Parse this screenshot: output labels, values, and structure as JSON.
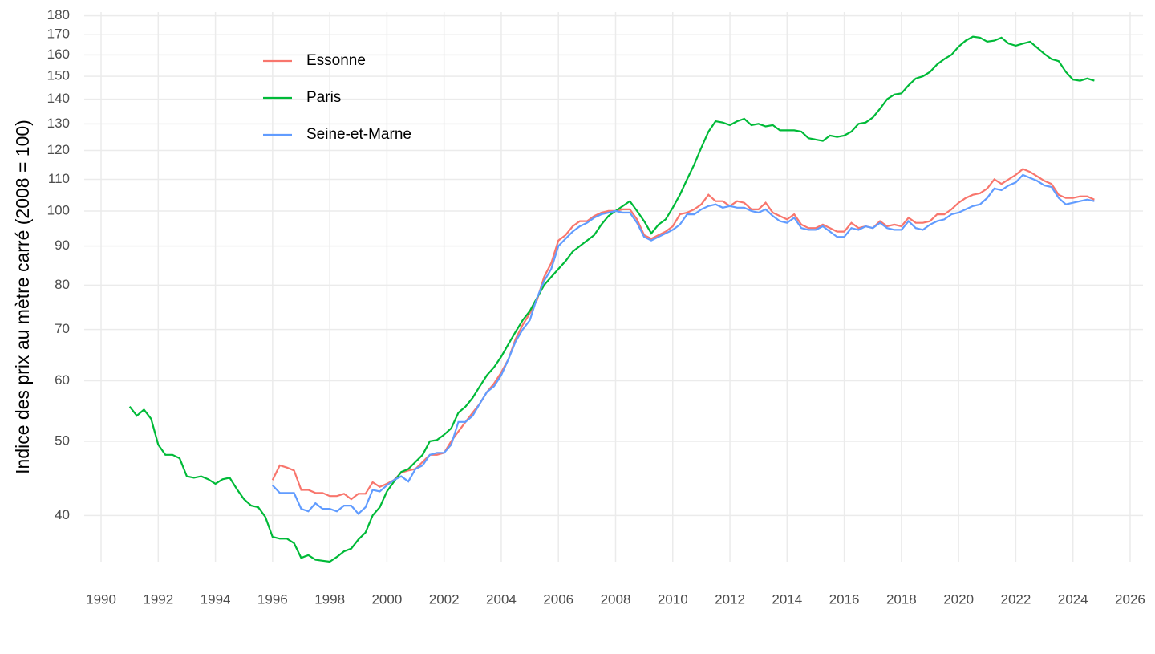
{
  "chart_data": {
    "type": "line",
    "y_label": "Indice des prix au mètre carré (2008 = 100)",
    "log_y": true,
    "grid": true,
    "legend_position": "top-left",
    "xlim": [
      1989.41,
      2026.45
    ],
    "ylim": [
      34.8,
      182
    ],
    "xticks": [
      1990,
      1992,
      1994,
      1996,
      1998,
      2000,
      2002,
      2004,
      2006,
      2008,
      2010,
      2012,
      2014,
      2016,
      2018,
      2020,
      2022,
      2024,
      2026
    ],
    "yticks": [
      40,
      50,
      60,
      70,
      80,
      90,
      100,
      110,
      120,
      130,
      140,
      150,
      160,
      170,
      180
    ],
    "x": [
      1991,
      1991.25,
      1991.5,
      1991.75,
      1992,
      1992.25,
      1992.5,
      1992.75,
      1993,
      1993.25,
      1993.5,
      1993.75,
      1994,
      1994.25,
      1994.5,
      1994.75,
      1995,
      1995.25,
      1995.5,
      1995.75,
      1996,
      1996.25,
      1996.5,
      1996.75,
      1997,
      1997.25,
      1997.5,
      1997.75,
      1998,
      1998.25,
      1998.5,
      1998.75,
      1999,
      1999.25,
      1999.5,
      1999.75,
      2000,
      2000.25,
      2000.5,
      2000.75,
      2001,
      2001.25,
      2001.5,
      2001.75,
      2002,
      2002.25,
      2002.5,
      2002.75,
      2003,
      2003.25,
      2003.5,
      2003.75,
      2004,
      2004.25,
      2004.5,
      2004.75,
      2005,
      2005.25,
      2005.5,
      2005.75,
      2006,
      2006.25,
      2006.5,
      2006.75,
      2007,
      2007.25,
      2007.5,
      2007.75,
      2008,
      2008.25,
      2008.5,
      2008.75,
      2009,
      2009.25,
      2009.5,
      2009.75,
      2010,
      2010.25,
      2010.5,
      2010.75,
      2011,
      2011.25,
      2011.5,
      2011.75,
      2012,
      2012.25,
      2012.5,
      2012.75,
      2013,
      2013.25,
      2013.5,
      2013.75,
      2014,
      2014.25,
      2014.5,
      2014.75,
      2015,
      2015.25,
      2015.5,
      2015.75,
      2016,
      2016.25,
      2016.5,
      2016.75,
      2017,
      2017.25,
      2017.5,
      2017.75,
      2018,
      2018.25,
      2018.5,
      2018.75,
      2019,
      2019.25,
      2019.5,
      2019.75,
      2020,
      2020.25,
      2020.5,
      2020.75,
      2021,
      2021.25,
      2021.5,
      2021.75,
      2022,
      2022.25,
      2022.5,
      2022.75,
      2023,
      2023.25,
      2023.5,
      2023.75,
      2024,
      2024.25,
      2024.5,
      2024.75
    ],
    "series": [
      {
        "name": "Essonne",
        "color": "#F8766D",
        "values": [
          null,
          null,
          null,
          null,
          null,
          null,
          null,
          null,
          null,
          null,
          null,
          null,
          null,
          null,
          null,
          null,
          null,
          null,
          null,
          null,
          44.5,
          46.5,
          46.2,
          45.8,
          43.2,
          43.2,
          42.8,
          42.8,
          42.4,
          42.4,
          42.7,
          42,
          42.7,
          42.7,
          44.2,
          43.6,
          44,
          44.5,
          45.5,
          45.8,
          46,
          47,
          48,
          48,
          48.3,
          50,
          51.5,
          53,
          54.5,
          56,
          58,
          59.5,
          61.5,
          64,
          68,
          71,
          73.5,
          76.5,
          82,
          85.5,
          91.5,
          93,
          95.5,
          97,
          97,
          98.5,
          99.5,
          100,
          100,
          100.5,
          100.5,
          97.5,
          93,
          92,
          93,
          94,
          95.5,
          99,
          99.5,
          100.5,
          102,
          105,
          103,
          103,
          101.5,
          103,
          102.5,
          100.5,
          100.5,
          102.5,
          99.5,
          98.5,
          97.5,
          99,
          96,
          95,
          95,
          96,
          95,
          94,
          94,
          96.5,
          95,
          95.5,
          95,
          97,
          95.5,
          96,
          95.5,
          98,
          96.5,
          96.5,
          97,
          99,
          99,
          100.5,
          102.5,
          104,
          105,
          105.5,
          107,
          110,
          108.5,
          110,
          111.5,
          113.5,
          112.5,
          111,
          109.5,
          108.5,
          105,
          104,
          104,
          104.5,
          104.5,
          103.5
        ]
      },
      {
        "name": "Paris",
        "color": "#00BA38",
        "values": [
          55.5,
          54,
          55,
          53.5,
          49.5,
          48,
          48,
          47.5,
          45,
          44.8,
          45,
          44.6,
          44,
          44.6,
          44.8,
          43.3,
          42,
          41.2,
          41,
          39.8,
          37.5,
          37.3,
          37.3,
          36.8,
          35.2,
          35.5,
          35,
          34.9,
          34.8,
          35.3,
          35.9,
          36.2,
          37.2,
          38,
          40,
          41,
          43,
          44.3,
          45.6,
          46,
          47,
          48,
          50,
          50.2,
          51,
          52,
          54.5,
          55.5,
          57,
          59,
          61,
          62.5,
          64.5,
          67,
          69.5,
          72,
          74,
          77,
          80,
          82,
          84,
          86,
          88.5,
          90,
          91.5,
          93,
          96,
          98.5,
          100,
          101.5,
          103,
          100,
          97,
          93.5,
          96,
          97.5,
          101,
          105,
          110,
          115,
          121,
          127,
          131,
          130.5,
          129.5,
          131,
          132,
          129.5,
          130,
          129,
          129.5,
          127.5,
          127.5,
          127.5,
          127,
          124.5,
          124,
          123.5,
          125.5,
          125,
          125.5,
          127,
          130,
          130.5,
          132.5,
          136,
          140,
          142,
          142.5,
          146,
          149,
          150,
          152,
          155.5,
          158,
          160,
          164,
          167,
          169,
          168.5,
          166.5,
          167,
          168.5,
          165.5,
          164.5,
          165.5,
          166.5,
          163.5,
          160.5,
          158,
          157,
          152,
          148.5,
          148,
          149,
          148
        ]
      },
      {
        "name": "Seine-et-Marne",
        "color": "#619CFF",
        "values": [
          null,
          null,
          null,
          null,
          null,
          null,
          null,
          null,
          null,
          null,
          null,
          null,
          null,
          null,
          null,
          null,
          null,
          null,
          null,
          null,
          43.8,
          42.8,
          42.8,
          42.8,
          40.8,
          40.5,
          41.5,
          40.8,
          40.8,
          40.5,
          41.2,
          41.2,
          40.2,
          41,
          43.2,
          43,
          43.8,
          44.5,
          45,
          44.3,
          46,
          46.5,
          48,
          48.3,
          48.3,
          49.5,
          53,
          53,
          54,
          56,
          58,
          59,
          61,
          64,
          67.5,
          70,
          72,
          77,
          81,
          84,
          90,
          92,
          94,
          95.5,
          96.5,
          98,
          99,
          99.5,
          100,
          99.5,
          99.5,
          96.5,
          92.5,
          91.5,
          92.5,
          93.5,
          94.5,
          96,
          99,
          99,
          100.5,
          101.5,
          102,
          101,
          101.5,
          101,
          101,
          100,
          99.5,
          100.5,
          98.5,
          97,
          96.5,
          98,
          95,
          94.5,
          94.5,
          95.5,
          94,
          92.5,
          92.5,
          95,
          94.5,
          95.5,
          95,
          96.5,
          95,
          94.5,
          94.5,
          97,
          95,
          94.5,
          96,
          97,
          97.5,
          99,
          99.5,
          100.5,
          101.5,
          102,
          104,
          107,
          106.5,
          108,
          109,
          111.5,
          110.5,
          109.5,
          108,
          107.5,
          104,
          102,
          102.5,
          103,
          103.5,
          103
        ]
      }
    ]
  }
}
